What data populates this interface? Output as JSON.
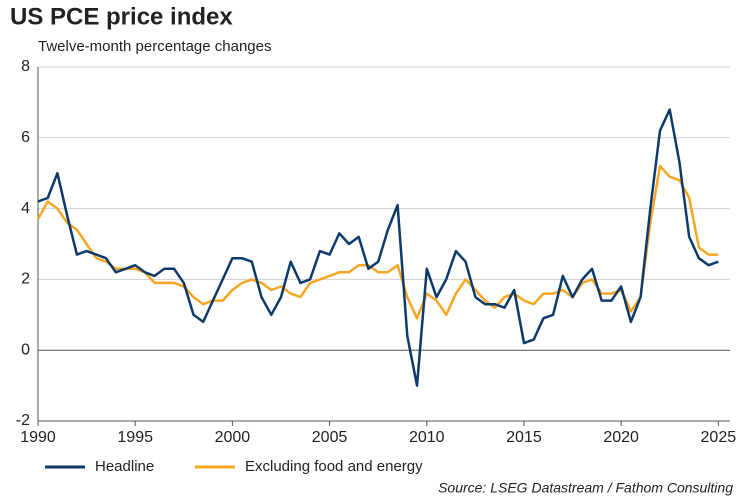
{
  "chart_data": {
    "type": "line",
    "title": "US PCE price index",
    "subtitle": "Twelve-month percentage changes",
    "source": "Source: LSEG Datastream / Fathom Consulting",
    "x": [
      1990,
      1990.5,
      1991,
      1991.5,
      1992,
      1992.5,
      1993,
      1993.5,
      1994,
      1994.5,
      1995,
      1995.5,
      1996,
      1996.5,
      1997,
      1997.5,
      1998,
      1998.5,
      1999,
      1999.5,
      2000,
      2000.5,
      2001,
      2001.5,
      2002,
      2002.5,
      2003,
      2003.5,
      2004,
      2004.5,
      2005,
      2005.5,
      2006,
      2006.5,
      2007,
      2007.5,
      2008,
      2008.5,
      2009,
      2009.5,
      2010,
      2010.5,
      2011,
      2011.5,
      2012,
      2012.5,
      2013,
      2013.5,
      2014,
      2014.5,
      2015,
      2015.5,
      2016,
      2016.5,
      2017,
      2017.5,
      2018,
      2018.5,
      2019,
      2019.5,
      2020,
      2020.5,
      2021,
      2021.5,
      2022,
      2022.5,
      2023,
      2023.5,
      2024,
      2024.5,
      2025
    ],
    "series": [
      {
        "name": "Headline",
        "color": "#0d3a6b",
        "values": [
          4.2,
          4.3,
          5.0,
          3.8,
          2.7,
          2.8,
          2.7,
          2.6,
          2.2,
          2.3,
          2.4,
          2.2,
          2.1,
          2.3,
          2.3,
          1.9,
          1.0,
          0.8,
          1.4,
          2.0,
          2.6,
          2.6,
          2.5,
          1.5,
          1.0,
          1.5,
          2.5,
          1.9,
          2.0,
          2.8,
          2.7,
          3.3,
          3.0,
          3.2,
          2.3,
          2.5,
          3.4,
          4.1,
          0.4,
          -1.0,
          2.3,
          1.5,
          2.0,
          2.8,
          2.5,
          1.5,
          1.3,
          1.3,
          1.2,
          1.7,
          0.2,
          0.3,
          0.9,
          1.0,
          2.1,
          1.5,
          2.0,
          2.3,
          1.4,
          1.4,
          1.8,
          0.8,
          1.5,
          4.0,
          6.2,
          6.8,
          5.3,
          3.2,
          2.6,
          2.4,
          2.5
        ]
      },
      {
        "name": "Excluding food and energy",
        "color": "#f5a623",
        "values": [
          3.7,
          4.2,
          4.0,
          3.6,
          3.4,
          3.0,
          2.6,
          2.5,
          2.3,
          2.3,
          2.3,
          2.2,
          1.9,
          1.9,
          1.9,
          1.8,
          1.5,
          1.3,
          1.4,
          1.4,
          1.7,
          1.9,
          2.0,
          1.9,
          1.7,
          1.8,
          1.6,
          1.5,
          1.9,
          2.0,
          2.1,
          2.2,
          2.2,
          2.4,
          2.4,
          2.2,
          2.2,
          2.4,
          1.5,
          0.9,
          1.6,
          1.4,
          1.0,
          1.6,
          2.0,
          1.7,
          1.4,
          1.2,
          1.5,
          1.6,
          1.4,
          1.3,
          1.6,
          1.6,
          1.7,
          1.5,
          1.9,
          2.0,
          1.6,
          1.6,
          1.7,
          1.1,
          1.5,
          3.6,
          5.2,
          4.9,
          4.8,
          4.3,
          2.9,
          2.7,
          2.7
        ]
      }
    ],
    "xlim": [
      1990,
      2025.6
    ],
    "xticks": [
      1990,
      1995,
      2000,
      2005,
      2010,
      2015,
      2020,
      2025
    ],
    "ylim": [
      -2,
      8
    ],
    "yticks": [
      -2,
      0,
      2,
      4,
      6,
      8
    ],
    "grid": true
  }
}
